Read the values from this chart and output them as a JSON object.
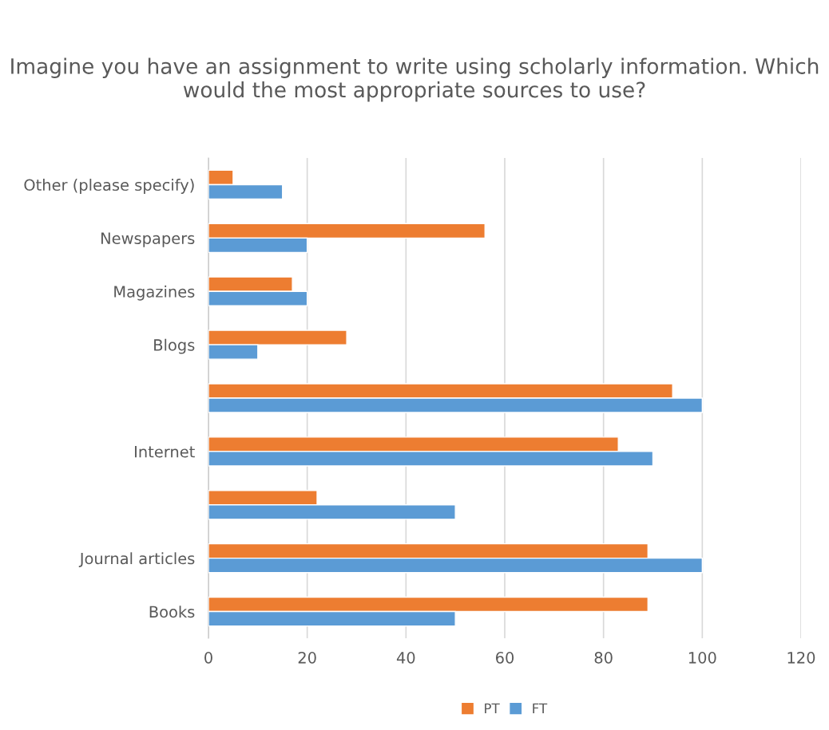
{
  "chart_data": {
    "type": "bar",
    "orientation": "horizontal",
    "title": "Imagine you have an assignment to write using scholarly information. Which would the most appropriate sources to use?",
    "categories": [
      "Other (please specify)",
      "Newspapers",
      "Magazines",
      "Blogs",
      null,
      "Internet",
      null,
      "Journal articles",
      "Books"
    ],
    "series": [
      {
        "name": "PT",
        "color": "#ed7d31",
        "values": [
          5,
          56,
          17,
          28,
          94,
          83,
          22,
          89,
          89
        ]
      },
      {
        "name": "FT",
        "color": "#5b9bd5",
        "values": [
          15,
          20,
          20,
          10,
          100,
          90,
          50,
          100,
          50
        ]
      }
    ],
    "xlim": [
      0,
      120
    ],
    "xticks": [
      0,
      20,
      40,
      60,
      80,
      100,
      120
    ],
    "grid": "x",
    "legend": "bottom"
  }
}
